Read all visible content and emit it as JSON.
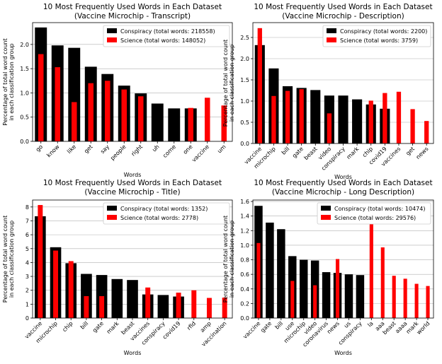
{
  "chart_data": [
    {
      "type": "bar",
      "title": "10 Most Frequently Used Words in Each Dataset",
      "subtitle": "(Vaccine Microchip - Transcript)",
      "xlabel": "Words",
      "ylabel_lines": [
        "Percentage of total word count",
        "in each classification group"
      ],
      "ylim": [
        0,
        2.45
      ],
      "yticks": [
        "0.0",
        "0.5",
        "1.0",
        "1.5",
        "2.0"
      ],
      "grid": true,
      "legend_position": "top-right",
      "categories": [
        "go",
        "know",
        "like",
        "get",
        "say",
        "people",
        "right",
        "uh",
        "come",
        "one",
        "vaccine",
        "um"
      ],
      "series": [
        {
          "name": "Conspiracy (total words: 218558)",
          "color": "#000000",
          "values": [
            2.35,
            1.98,
            1.93,
            1.54,
            1.39,
            1.15,
            0.99,
            0.78,
            0.68,
            0.68,
            null,
            null
          ]
        },
        {
          "name": "Science (total words: 148052)",
          "color": "#ff0000",
          "values": [
            1.8,
            1.53,
            0.81,
            1.2,
            1.25,
            1.07,
            0.93,
            null,
            null,
            0.69,
            0.9,
            0.74
          ]
        }
      ]
    },
    {
      "type": "bar",
      "title": "10 Most Frequently Used Words in Each Dataset",
      "subtitle": "(Vaccine Microchip - Description)",
      "xlabel": "Words",
      "ylabel_lines": [
        "Percentage of total word count",
        "in each classification group"
      ],
      "ylim": [
        0,
        2.85
      ],
      "yticks": [
        "0.0",
        "0.5",
        "1.0",
        "1.5",
        "2.0",
        "2.5"
      ],
      "grid": true,
      "legend_position": "top-right",
      "categories": [
        "vaccine",
        "microchip",
        "bill",
        "gate",
        "beast",
        "video",
        "conspiracy",
        "mark",
        "chip",
        "covid19",
        "vaccines",
        "get",
        "news"
      ],
      "series": [
        {
          "name": "Conspiracy (total words: 2200)",
          "color": "#000000",
          "values": [
            2.32,
            1.77,
            1.35,
            1.31,
            1.26,
            1.13,
            1.13,
            1.04,
            0.92,
            0.82,
            null,
            null,
            null
          ]
        },
        {
          "name": "Science (total words: 3759)",
          "color": "#ff0000",
          "values": [
            2.72,
            1.12,
            1.24,
            1.28,
            null,
            0.71,
            null,
            null,
            1.01,
            1.19,
            1.22,
            0.81,
            0.53
          ]
        }
      ]
    },
    {
      "type": "bar",
      "title": "10 Most Frequently Used Words in Each Dataset",
      "subtitle": "(Vaccine Microchip - Title)",
      "xlabel": "Words",
      "ylabel_lines": [
        "Percentage of total word count",
        "in each classification group"
      ],
      "ylim": [
        0,
        8.5
      ],
      "yticks": [
        "0",
        "1",
        "2",
        "3",
        "4",
        "5",
        "6",
        "7",
        "8"
      ],
      "grid": true,
      "legend_position": "top-right",
      "categories": [
        "vaccine",
        "microchip",
        "chip",
        "bill",
        "gate",
        "mark",
        "beast",
        "vaccines",
        "conspiracy",
        "covid19",
        "rfid",
        "amp",
        "vaccination"
      ],
      "series": [
        {
          "name": "Conspiracy (total words: 1352)",
          "color": "#000000",
          "values": [
            7.33,
            5.1,
            3.95,
            3.18,
            3.1,
            2.81,
            2.74,
            1.7,
            1.66,
            1.55,
            null,
            null,
            null
          ]
        },
        {
          "name": "Science (total words: 2778)",
          "color": "#ff0000",
          "values": [
            8.14,
            4.86,
            4.1,
            1.58,
            1.58,
            null,
            null,
            2.2,
            null,
            1.83,
            2.0,
            1.45,
            1.47
          ]
        }
      ]
    },
    {
      "type": "bar",
      "title": "10 Most Frequently Used Words in Each Dataset",
      "subtitle": "(Vaccine Microchip - Long Description)",
      "xlabel": "Words",
      "ylabel_lines": [
        "Percentage of total word count",
        "in each classification group"
      ],
      "ylim": [
        0,
        1.62
      ],
      "yticks": [
        "0.0",
        "0.2",
        "0.4",
        "0.6",
        "0.8",
        "1.0",
        "1.2",
        "1.4",
        "1.6"
      ],
      "grid": true,
      "legend_position": "top-right",
      "categories": [
        "vaccine",
        "gate",
        "bill",
        "use",
        "microchip",
        "video",
        "coronavirus",
        "news",
        "us",
        "conspiracy",
        "la",
        "aaa",
        "beast",
        "aaaa",
        "mark",
        "world"
      ],
      "series": [
        {
          "name": "Conspiracy (total words: 10474)",
          "color": "#000000",
          "values": [
            1.54,
            1.31,
            1.22,
            0.85,
            0.8,
            0.79,
            0.63,
            0.62,
            0.6,
            0.59,
            null,
            null,
            null,
            null,
            null,
            null
          ]
        },
        {
          "name": "Science (total words: 29576)",
          "color": "#ff0000",
          "values": [
            1.03,
            null,
            null,
            0.51,
            null,
            0.45,
            null,
            0.81,
            null,
            null,
            1.33,
            0.97,
            0.58,
            0.54,
            0.47,
            0.44
          ]
        }
      ]
    }
  ]
}
